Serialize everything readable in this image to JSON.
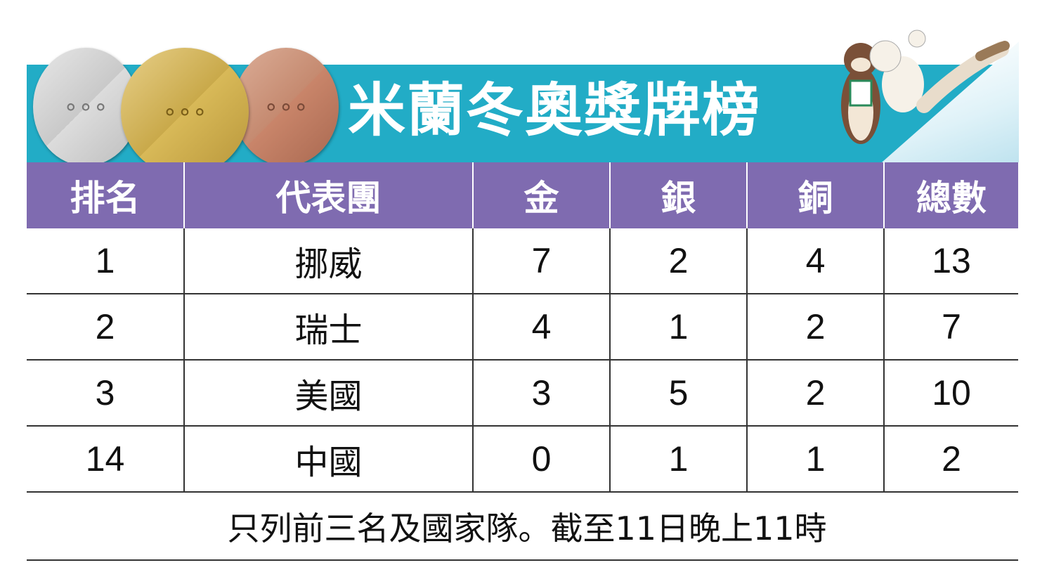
{
  "title": "米蘭冬奧獎牌榜",
  "colors": {
    "banner": "#22acc6",
    "header": "#7f6bb0"
  },
  "icons": [
    "silver-medal-icon",
    "gold-medal-icon",
    "bronze-medal-icon",
    "mascot-illustration"
  ],
  "table": {
    "headers": [
      "排名",
      "代表團",
      "金",
      "銀",
      "銅",
      "總數"
    ],
    "rows": [
      {
        "rank": "1",
        "team": "挪威",
        "gold": "7",
        "silver": "2",
        "bronze": "4",
        "total": "13"
      },
      {
        "rank": "2",
        "team": "瑞士",
        "gold": "4",
        "silver": "1",
        "bronze": "2",
        "total": "7"
      },
      {
        "rank": "3",
        "team": "美國",
        "gold": "3",
        "silver": "5",
        "bronze": "2",
        "total": "10"
      },
      {
        "rank": "14",
        "team": "中國",
        "gold": "0",
        "silver": "1",
        "bronze": "1",
        "total": "2"
      }
    ]
  },
  "footnote": "只列前三名及國家隊。截至11日晚上11時"
}
